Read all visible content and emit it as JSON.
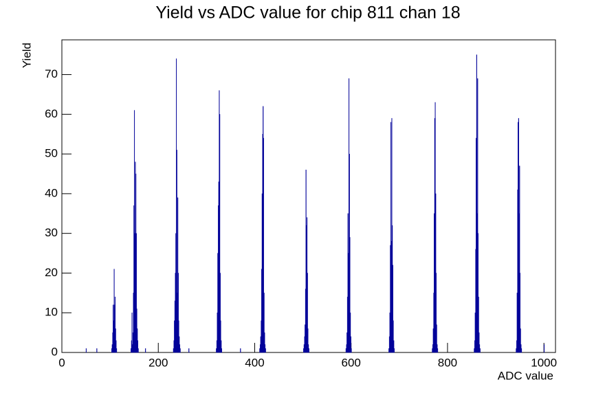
{
  "chart_data": {
    "type": "histogram",
    "title": "Yield vs ADC value for chip 811 chan 18",
    "x_label": "ADC value",
    "y_label": "Yield",
    "color": "#000099",
    "bins": [
      0,
      50,
      51,
      72,
      73,
      103,
      104,
      105,
      106,
      107,
      108,
      109,
      110,
      111,
      112,
      113,
      114,
      143,
      144,
      145,
      146,
      147,
      148,
      149,
      150,
      151,
      152,
      153,
      154,
      155,
      156,
      157,
      158,
      159,
      173,
      174,
      231,
      232,
      233,
      234,
      235,
      236,
      237,
      238,
      239,
      240,
      241,
      242,
      243,
      244,
      245,
      246,
      263,
      264,
      320,
      321,
      322,
      323,
      324,
      325,
      326,
      327,
      328,
      329,
      330,
      331,
      332,
      370,
      371,
      410,
      411,
      412,
      413,
      414,
      415,
      416,
      417,
      418,
      419,
      420,
      421,
      422,
      423,
      501,
      502,
      503,
      504,
      505,
      506,
      507,
      508,
      509,
      510,
      511,
      512,
      513,
      589,
      590,
      591,
      592,
      593,
      594,
      595,
      596,
      597,
      598,
      599,
      600,
      601,
      678,
      679,
      680,
      681,
      682,
      683,
      684,
      685,
      686,
      687,
      688,
      689,
      690,
      768,
      769,
      770,
      771,
      772,
      773,
      774,
      775,
      776,
      777,
      778,
      779,
      780,
      855,
      856,
      857,
      858,
      859,
      860,
      861,
      862,
      863,
      864,
      865,
      866,
      867,
      868,
      942,
      943,
      944,
      945,
      946,
      947,
      948,
      949,
      950,
      951,
      952,
      953,
      954,
      1000,
      1001,
      1024
    ],
    "values": [
      0,
      1,
      0,
      1,
      0,
      1,
      2,
      5,
      12,
      8,
      21,
      12,
      14,
      6,
      3,
      1,
      0,
      1,
      3,
      10,
      2,
      5,
      15,
      37,
      61,
      30,
      48,
      45,
      30,
      11,
      6,
      3,
      1,
      0,
      1,
      0,
      1,
      3,
      8,
      13,
      20,
      30,
      74,
      51,
      15,
      39,
      20,
      8,
      4,
      2,
      1,
      0,
      1,
      0,
      1,
      3,
      10,
      25,
      37,
      43,
      66,
      60,
      20,
      8,
      3,
      1,
      0,
      1,
      0,
      1,
      2,
      4,
      8,
      21,
      40,
      55,
      62,
      54,
      15,
      5,
      2,
      1,
      0,
      1,
      2,
      4,
      7,
      16,
      46,
      32,
      34,
      20,
      6,
      2,
      1,
      0,
      1,
      2,
      5,
      14,
      35,
      25,
      69,
      50,
      29,
      10,
      4,
      1,
      0,
      1,
      4,
      10,
      27,
      58,
      28,
      59,
      32,
      22,
      8,
      3,
      1,
      0,
      1,
      2,
      6,
      15,
      35,
      59,
      63,
      40,
      20,
      7,
      2,
      1,
      0,
      1,
      3,
      10,
      26,
      54,
      75,
      35,
      69,
      30,
      14,
      5,
      2,
      1,
      0,
      1,
      3,
      15,
      41,
      58,
      59,
      35,
      47,
      20,
      6,
      2,
      1,
      0,
      2,
      0
    ],
    "xlim": [
      0,
      1024
    ],
    "ylim": [
      0,
      78.75
    ],
    "xticks": [
      0,
      200,
      400,
      600,
      800,
      1000
    ],
    "yticks": [
      0,
      10,
      20,
      30,
      40,
      50,
      60,
      70
    ]
  }
}
